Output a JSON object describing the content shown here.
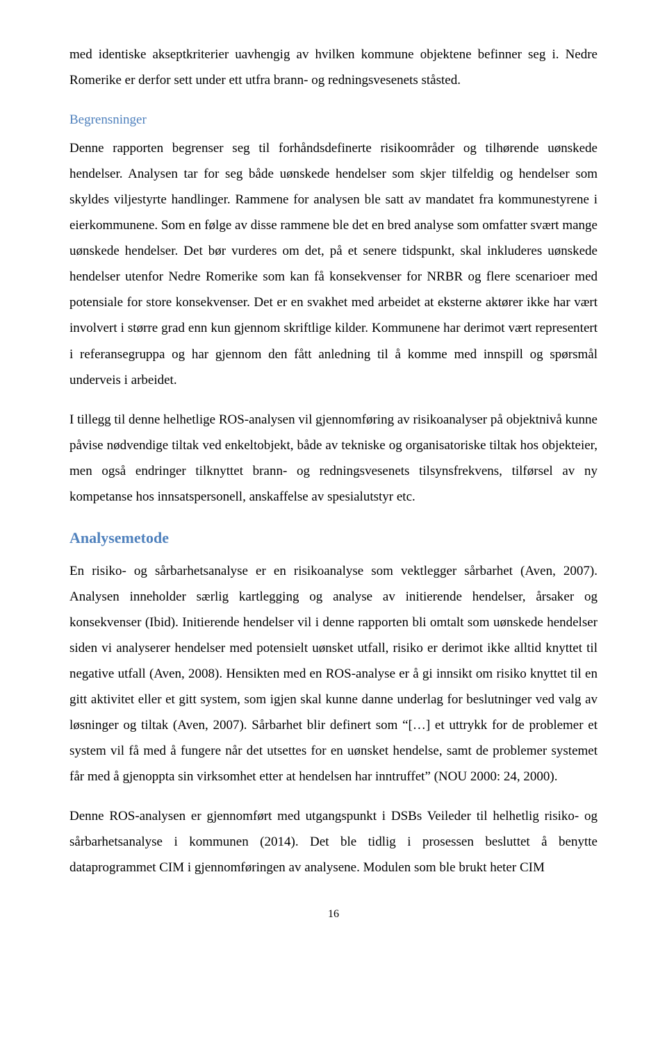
{
  "colors": {
    "heading": "#4f81bd",
    "body_text": "#000000",
    "background": "#ffffff"
  },
  "typography": {
    "body_font": "Times New Roman",
    "body_size_pt": 12,
    "heading_size_pt": 14,
    "line_height": 1.95
  },
  "paragraphs": {
    "p1": "med identiske akseptkriterier uavhengig av hvilken kommune objektene befinner seg i. Nedre Romerike er derfor sett under ett utfra brann- og redningsvesenets ståsted.",
    "limitations_heading": "Begrensninger",
    "p2": "Denne rapporten begrenser seg til forhåndsdefinerte risikoområder og tilhørende uønskede hendelser. Analysen tar for seg både uønskede hendelser som skjer tilfeldig og hendelser som skyldes viljestyrte handlinger. Rammene for analysen ble satt av mandatet fra kommunestyrene i eierkommunene. Som en følge av disse rammene ble det en bred analyse som omfatter svært mange uønskede hendelser. Det bør vurderes om det, på et senere tidspunkt, skal inkluderes uønskede hendelser utenfor Nedre Romerike som kan få konsekvenser for NRBR og flere scenarioer med potensiale for store konsekvenser. Det er en svakhet med arbeidet at eksterne aktører ikke har vært involvert i større grad enn kun gjennom skriftlige kilder. Kommunene har derimot vært representert i referansegruppa og har gjennom den fått anledning til å komme med innspill og spørsmål underveis i arbeidet.",
    "p3": "I tillegg til denne helhetlige ROS-analysen vil gjennomføring av risikoanalyser på objektnivå kunne påvise nødvendige tiltak ved enkeltobjekt, både av tekniske og organisatoriske tiltak hos objekteier, men også endringer tilknyttet brann- og redningsvesenets tilsynsfrekvens, tilførsel av ny kompetanse hos innsatspersonell, anskaffelse av spesialutstyr etc.",
    "method_heading": "Analysemetode",
    "p4": "En risiko- og sårbarhetsanalyse er en risikoanalyse som vektlegger sårbarhet (Aven, 2007). Analysen inneholder særlig kartlegging og analyse av initierende hendelser, årsaker og konsekvenser (Ibid). Initierende hendelser vil i denne rapporten bli omtalt som uønskede hendelser siden vi analyserer hendelser med potensielt uønsket utfall, risiko er derimot ikke alltid knyttet til negative utfall (Aven, 2008). Hensikten med en ROS-analyse er å gi innsikt om risiko knyttet til en gitt aktivitet eller et gitt system, som igjen skal kunne danne underlag for beslutninger ved valg av løsninger og tiltak (Aven, 2007). Sårbarhet blir definert som “[…] et uttrykk for de problemer et system vil få med å fungere når det utsettes for en uønsket hendelse, samt de problemer systemet får med å gjenoppta sin virksomhet etter at hendelsen har inntruffet” (NOU 2000: 24, 2000).",
    "p5": "Denne ROS-analysen er gjennomført med utgangspunkt i DSBs Veileder til helhetlig risiko- og sårbarhetsanalyse i kommunen (2014). Det ble tidlig i prosessen besluttet å benytte dataprogrammet CIM i gjennomføringen av analysene. Modulen som ble brukt heter CIM"
  },
  "page_number": "16"
}
